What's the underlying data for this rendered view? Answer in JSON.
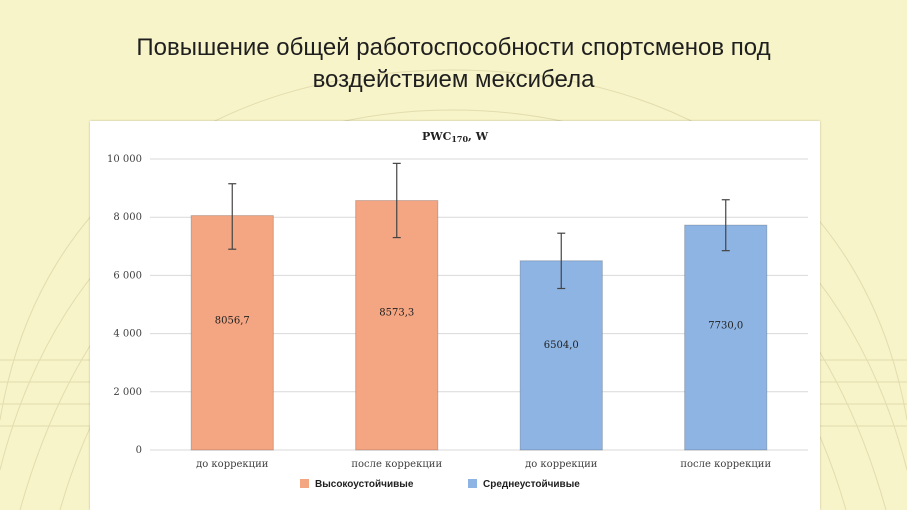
{
  "slide": {
    "title_line1": "Повышение общей работоспособности спортсменов под",
    "title_line2": "воздействием мексибела"
  },
  "chart_data": {
    "type": "bar",
    "title": "PWC170, W",
    "categories": [
      "до коррекции",
      "после коррекции",
      "до коррекции",
      "после коррекции"
    ],
    "values": [
      8056.7,
      8573.3,
      6504.0,
      7730.0
    ],
    "data_labels": [
      "8056,7",
      "8573,3",
      "6504,0",
      "7730,0"
    ],
    "error_ranges": [
      [
        6900,
        9150
      ],
      [
        7300,
        9850
      ],
      [
        5550,
        7450
      ],
      [
        6850,
        8600
      ]
    ],
    "series_index": [
      0,
      0,
      1,
      1
    ],
    "series": [
      {
        "name": "Высокоустойчивые",
        "color": "#f4a582"
      },
      {
        "name": "Среднеустойчивые",
        "color": "#8eb4e3"
      }
    ],
    "ylim": [
      0,
      10000
    ],
    "yticks": [
      0,
      2000,
      4000,
      6000,
      8000,
      10000
    ],
    "ytick_labels": [
      "0",
      "2 000",
      "4 000",
      "6 000",
      "8 000",
      "10 000"
    ],
    "grid": true,
    "legend_position": "bottom"
  }
}
